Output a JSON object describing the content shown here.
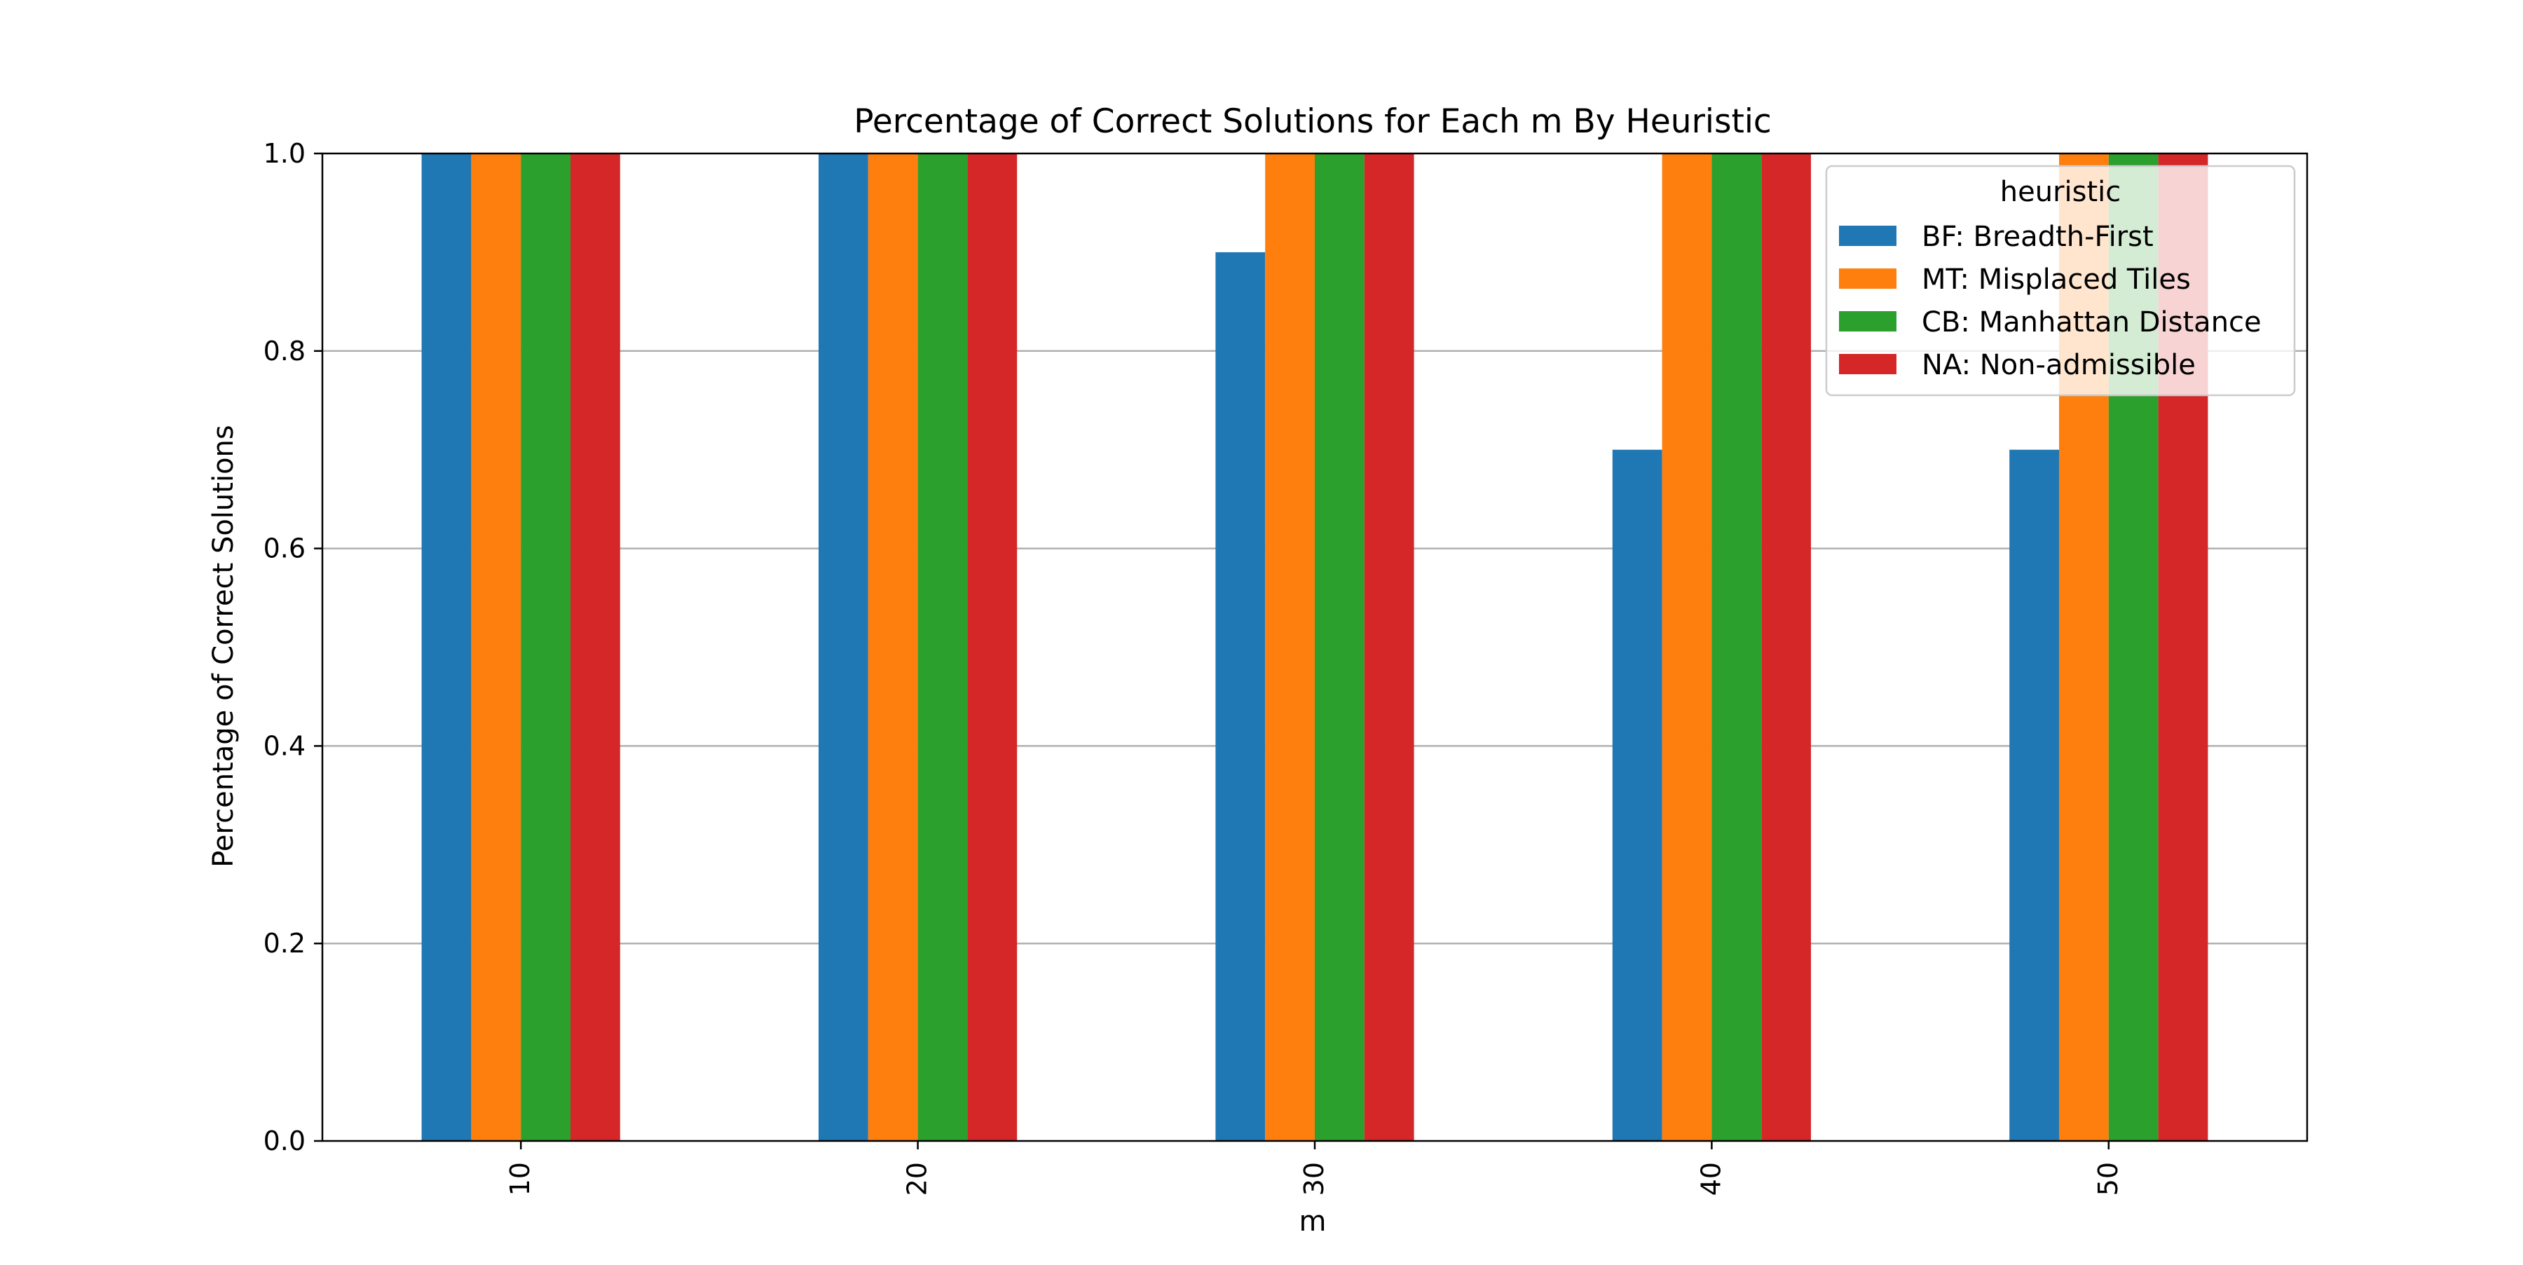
{
  "chart_data": {
    "type": "bar",
    "title": "Percentage of Correct Solutions for Each m By Heuristic",
    "xlabel": "m",
    "ylabel": "Percentage of Correct Solutions",
    "categories": [
      "10",
      "20",
      "30",
      "40",
      "50"
    ],
    "ylim": [
      0,
      1.0
    ],
    "yticks": [
      "0.0",
      "0.2",
      "0.4",
      "0.6",
      "0.8",
      "1.0"
    ],
    "grid": "horizontal",
    "legend_position": "top-right",
    "legend_title": "heuristic",
    "series": [
      {
        "name": "BF: Breadth-First",
        "color": "#1f77b4",
        "values": [
          1.0,
          1.0,
          0.9,
          0.7,
          0.7
        ]
      },
      {
        "name": "MT: Misplaced Tiles",
        "color": "#ff7f0e",
        "values": [
          1.0,
          1.0,
          1.0,
          1.0,
          1.0
        ]
      },
      {
        "name": "CB: Manhattan Distance",
        "color": "#2ca02c",
        "values": [
          1.0,
          1.0,
          1.0,
          1.0,
          1.0
        ]
      },
      {
        "name": "NA: Non-admissible",
        "color": "#d62728",
        "values": [
          1.0,
          1.0,
          1.0,
          1.0,
          1.0
        ]
      }
    ]
  }
}
